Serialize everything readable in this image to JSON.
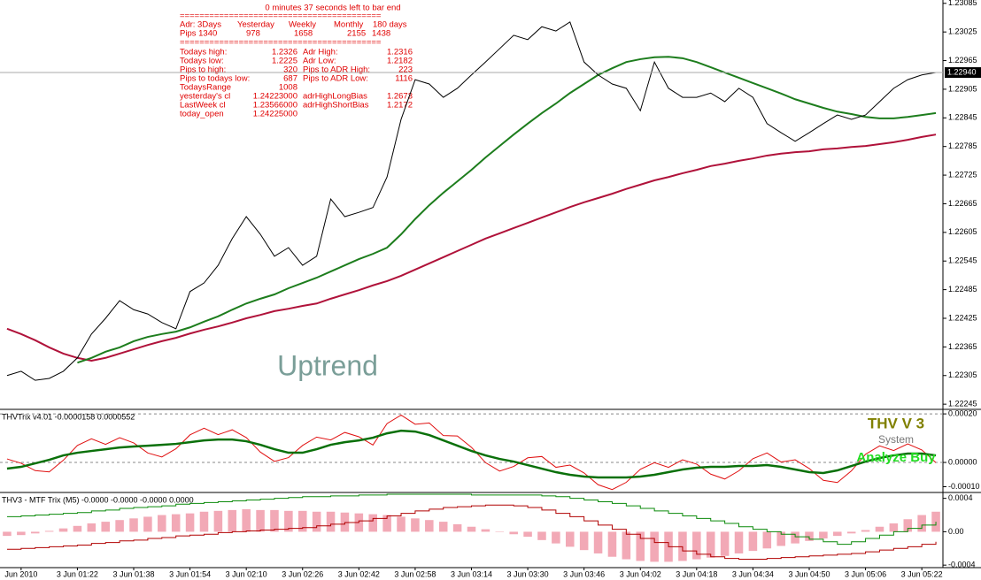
{
  "info": {
    "timer": "0 minutes 37 seconds left to bar end",
    "separator": "=========================================",
    "adr_header": [
      "Adr: 3Days",
      "Yesterday",
      "Weekly",
      "Monthly",
      "180 days"
    ],
    "adr_pips": [
      "Pips  1340",
      "978",
      "1658",
      "2155",
      "1438"
    ],
    "stats": [
      [
        "Todays high:",
        "1.2326",
        "Adr High:",
        "1.2316"
      ],
      [
        "Todays low:",
        "1.2225",
        "Adr Low:",
        "1.2182"
      ],
      [
        " Pips to high:",
        "320",
        "Pips to ADR High:",
        "223"
      ],
      [
        "Pips to todays low:",
        "687",
        "Pips to ADR Low:",
        "1116"
      ],
      [
        "TodaysRange",
        "1008"
      ],
      [
        "yesterday's cl",
        "1.24223000",
        "adrHighLongBias",
        "1.2673"
      ],
      [
        " LastWeek cl",
        "1.23566000",
        "adrHighShortBias",
        "1.2172"
      ],
      [
        "  today_open",
        "1.24225000"
      ]
    ]
  },
  "chart_data": [
    {
      "type": "line",
      "annotation": "Uptrend",
      "ylim": [
        1.22236,
        1.23092
      ],
      "yticks": [
        1.23085,
        1.23025,
        1.22965,
        1.22905,
        1.22845,
        1.22785,
        1.22725,
        1.22665,
        1.22605,
        1.22545,
        1.22485,
        1.22425,
        1.22365,
        1.22305,
        1.22245
      ],
      "last_price": {
        "value": 1.2294,
        "label": "1.22940"
      },
      "series": [
        {
          "color": "#b0123a",
          "width": 2,
          "values": [
            1.22403,
            1.22392,
            1.22379,
            1.22364,
            1.22351,
            1.22342,
            1.22336,
            1.22342,
            1.22351,
            1.2236,
            1.22369,
            1.22377,
            1.22384,
            1.22393,
            1.22401,
            1.22408,
            1.22416,
            1.22425,
            1.22432,
            1.2244,
            1.22445,
            1.22451,
            1.22456,
            1.22466,
            1.22475,
            1.22484,
            1.22494,
            1.22503,
            1.22514,
            1.22527,
            1.2254,
            1.22553,
            1.22566,
            1.22579,
            1.22592,
            1.22603,
            1.22614,
            1.22625,
            1.22636,
            1.22647,
            1.22658,
            1.22668,
            1.22677,
            1.22686,
            1.22696,
            1.22705,
            1.22714,
            1.22721,
            1.22729,
            1.22736,
            1.22744,
            1.22749,
            1.22755,
            1.2276,
            1.22766,
            1.2277,
            1.22773,
            1.22775,
            1.22779,
            1.22781,
            1.22784,
            1.22786,
            1.2279,
            1.22794,
            1.22799,
            1.22805,
            1.2281
          ]
        },
        {
          "color": "#1d7d1d",
          "width": 2,
          "values": [
            null,
            null,
            null,
            null,
            null,
            1.22332,
            1.22342,
            1.22355,
            1.22364,
            1.22377,
            1.22386,
            1.22392,
            1.22397,
            1.22406,
            1.22418,
            1.22429,
            1.22443,
            1.22456,
            1.22466,
            1.22475,
            1.22488,
            1.22499,
            1.2251,
            1.22523,
            1.22536,
            1.22549,
            1.2256,
            1.22573,
            1.22601,
            1.22633,
            1.22662,
            1.22688,
            1.22712,
            1.22736,
            1.22762,
            1.22786,
            1.2281,
            1.22833,
            1.22855,
            1.22875,
            1.22897,
            1.22916,
            1.22935,
            1.22949,
            1.22962,
            1.22968,
            1.22972,
            1.22973,
            1.2297,
            1.22962,
            1.22951,
            1.2294,
            1.22929,
            1.22918,
            1.22907,
            1.22896,
            1.22884,
            1.22875,
            1.22866,
            1.22858,
            1.22853,
            1.22847,
            1.22844,
            1.22844,
            1.22847,
            1.22851,
            1.22855
          ]
        },
        {
          "color": "#000000",
          "width": 1,
          "values": [
            1.22305,
            1.22314,
            1.22295,
            1.22299,
            1.22314,
            1.22342,
            1.22392,
            1.22425,
            1.22462,
            1.22443,
            1.22434,
            1.22416,
            1.22403,
            1.22481,
            1.22499,
            1.22536,
            1.22592,
            1.22638,
            1.22601,
            1.22555,
            1.22573,
            1.22536,
            1.22555,
            1.22675,
            1.22638,
            1.22647,
            1.22657,
            1.22721,
            1.22842,
            1.22925,
            1.22916,
            1.22888,
            1.22907,
            1.22935,
            1.22962,
            1.2299,
            1.23018,
            1.23009,
            1.23036,
            1.23027,
            1.23046,
            1.22962,
            1.22935,
            1.22916,
            1.22907,
            1.2286,
            1.22962,
            1.22907,
            1.22888,
            1.22888,
            1.22897,
            1.22879,
            1.22907,
            1.22888,
            1.22833,
            1.22814,
            1.22796,
            1.22814,
            1.22833,
            1.22851,
            1.22842,
            1.22851,
            1.22879,
            1.22907,
            1.22925,
            1.22935,
            1.2294
          ]
        }
      ]
    },
    {
      "type": "line",
      "title": "THVTrix v4.01 -0.0000158 0.0000552",
      "annotations": [
        "THV V 3",
        "System",
        "Analyze Buy"
      ],
      "ylim": [
        -0.00012,
        0.000215
      ],
      "yticks": [
        {
          "value": 0.0002,
          "label": "0.00020"
        },
        {
          "value": 0,
          "label": "0.00000"
        },
        {
          "value": -0.0001,
          "label": "-0.00010"
        }
      ],
      "levels": [
        0.0002,
        0
      ],
      "series": [
        {
          "color": "#e01010",
          "width": 1,
          "values": [
            1.45e-05,
            -3.2e-06,
            -3.36e-05,
            -3.91e-05,
            9.1e-06,
            7e-05,
            9.73e-05,
            7.45e-05,
            0.0001018,
            8.05e-05,
            3.91e-05,
            2.27e-05,
            5.64e-05,
            0.0001136,
            0.0001409,
            0.0001145,
            0.0001345,
            0.0001023,
            4.27e-05,
            4.5e-06,
            2e-05,
            7e-05,
            0.0001045,
            9.27e-05,
            0.0001236,
            0.0001059,
            7.18e-05,
            0.00016,
            0.000195,
            0.0001573,
            0.0001627,
            0.0001109,
            0.0001091,
            6.23e-05,
            -9e-07,
            -3.55e-05,
            -1.64e-05,
            1.91e-05,
            2.45e-05,
            -2e-05,
            -1.09e-05,
            -4.32e-05,
            -9.18e-05,
            -0.0001118,
            -8.18e-05,
            -2.82e-05,
            -9e-07,
            -2e-05,
            1.09e-05,
            -6.8e-06,
            -4.82e-05,
            -6.82e-05,
            -3.45e-05,
            1.55e-05,
            3.91e-05,
            1.8e-06,
            1.09e-05,
            -2.5e-05,
            -7.36e-05,
            -8.27e-05,
            -3.45e-05,
            3.36e-05,
            6.82e-05,
            4.91e-05,
            7.64e-05,
            5.14e-05,
            -9e-07
          ]
        },
        {
          "color": "#0a700a",
          "width": 2.5,
          "values": [
            -2.55e-05,
            -1.82e-05,
            -3.6e-06,
            1.09e-05,
            2.91e-05,
            4e-05,
            4.73e-05,
            5.45e-05,
            6.18e-05,
            6.55e-05,
            6.91e-05,
            7.27e-05,
            7.64e-05,
            8.36e-05,
            9.09e-05,
            9.45e-05,
            9.45e-05,
            8.73e-05,
            7.27e-05,
            5.45e-05,
            4e-05,
            4e-05,
            5.45e-05,
            7.27e-05,
            8.36e-05,
            9.09e-05,
            0.0001018,
            0.00012,
            0.0001309,
            0.0001273,
            0.0001127,
            9.09e-05,
            6.91e-05,
            4.73e-05,
            2.91e-05,
            1.45e-05,
            3.6e-06,
            -1.09e-05,
            -2.55e-05,
            -4e-05,
            -5.09e-05,
            -5.82e-05,
            -6.18e-05,
            -6.18e-05,
            -6.18e-05,
            -5.82e-05,
            -5.09e-05,
            -4e-05,
            -2.91e-05,
            -2.18e-05,
            -1.82e-05,
            -1.82e-05,
            -1.45e-05,
            -1.45e-05,
            -1.09e-05,
            -1.82e-05,
            -2.91e-05,
            -4e-05,
            -4.36e-05,
            -3.27e-05,
            -1.45e-05,
            3.6e-06,
            1.82e-05,
            2.91e-05,
            3.64e-05,
            3.64e-05,
            2.91e-05
          ]
        }
      ]
    },
    {
      "type": "combo",
      "title": "THV3 - MTF Trix (M5) -0.0000 -0.0000 -0.0000 0.0000",
      "ylim": [
        -0.00043,
        0.00046
      ],
      "yticks": [
        0.0004,
        {
          "value": 0,
          "label": "0.00"
        },
        -0.0004
      ],
      "categories": [
        null,
        "Jun 2010",
        null,
        null,
        null,
        "3 Jun 01:22",
        null,
        null,
        null,
        "3 Jun 01:38",
        null,
        null,
        null,
        "3 Jun 01:54",
        null,
        null,
        null,
        "3 Jun 02:10",
        null,
        null,
        null,
        "3 Jun 02:26",
        null,
        null,
        null,
        "3 Jun 02:42",
        null,
        null,
        null,
        "3 Jun 02:58",
        null,
        null,
        null,
        "3 Jun 03:14",
        null,
        null,
        null,
        "3 Jun 03:30",
        null,
        null,
        null,
        "3 Jun 03:46",
        null,
        null,
        null,
        "3 Jun 04:02",
        null,
        null,
        null,
        "3 Jun 04:18",
        null,
        null,
        null,
        "3 Jun 04:34",
        null,
        null,
        null,
        "3 Jun 04:50",
        null,
        null,
        null,
        "3 Jun 05:06",
        null,
        null,
        null,
        "3 Jun 05:22",
        null
      ],
      "series": [
        {
          "type": "bar",
          "color": "#f2a9b6",
          "values": [
            -5e-05,
            -4e-05,
            -2e-05,
            1e-05,
            4e-05,
            7e-05,
            0.0001,
            0.00012,
            0.00014,
            0.00016,
            0.00018,
            0.0002,
            0.00021,
            0.00022,
            0.00024,
            0.00025,
            0.00026,
            0.00027,
            0.00026,
            0.00026,
            0.00025,
            0.00025,
            0.00024,
            0.00024,
            0.00023,
            0.00022,
            0.00021,
            0.0002,
            0.00018,
            0.00016,
            0.00014,
            0.00012,
            9e-05,
            6e-05,
            3e-05,
            0,
            -3e-05,
            -6e-05,
            -0.0001,
            -0.00014,
            -0.00018,
            -0.00022,
            -0.00026,
            -0.0003,
            -0.00033,
            -0.00035,
            -0.00036,
            -0.00036,
            -0.00035,
            -0.00033,
            -0.00031,
            -0.00029,
            -0.00026,
            -0.00023,
            -0.0002,
            -0.00017,
            -0.00014,
            -0.00011,
            -8e-05,
            -5e-05,
            -2e-05,
            2e-05,
            6e-05,
            0.0001,
            0.00015,
            0.0002,
            0.00024
          ]
        },
        {
          "type": "line",
          "step": true,
          "color": "#0a8a0a",
          "width": 1,
          "values": [
            0.00018,
            0.00019,
            0.0002,
            0.00021,
            0.00022,
            0.00023,
            0.00025,
            0.00026,
            0.00028,
            0.00029,
            0.0003,
            0.00031,
            0.00033,
            0.00034,
            0.00035,
            0.00036,
            0.00037,
            0.00038,
            0.00039,
            0.0004,
            0.00041,
            0.00042,
            0.00042,
            0.00043,
            0.00043,
            0.00044,
            0.00044,
            0.00045,
            0.00045,
            0.00045,
            0.00045,
            0.00045,
            0.00045,
            0.00044,
            0.00044,
            0.00044,
            0.00044,
            0.00044,
            0.00043,
            0.00042,
            0.0004,
            0.00038,
            0.00036,
            0.00034,
            0.00031,
            0.00028,
            0.00025,
            0.00022,
            0.00019,
            0.00016,
            0.00013,
            0.0001,
            6e-05,
            3e-05,
            0,
            -3e-05,
            -6e-05,
            -9e-05,
            -0.00012,
            -0.00015,
            -0.00012,
            -8e-05,
            -4e-05,
            0,
            4e-05,
            8e-05,
            0.00012
          ]
        },
        {
          "type": "line",
          "step": true,
          "color": "#b00000",
          "width": 1,
          "values": [
            -0.00021,
            -0.0002,
            -0.00019,
            -0.00018,
            -0.00017,
            -0.00016,
            -0.00014,
            -0.00013,
            -0.00011,
            -0.0001,
            -8e-05,
            -7e-05,
            -5e-05,
            -4e-05,
            -3e-05,
            -1e-05,
            0,
            1e-05,
            2e-05,
            3e-05,
            4e-05,
            5e-05,
            7e-05,
            9e-05,
            0.00011,
            0.00013,
            0.00016,
            0.00019,
            0.00022,
            0.00025,
            0.00027,
            0.00029,
            0.0003,
            0.00031,
            0.00032,
            0.00032,
            0.00031,
            0.00029,
            0.00026,
            0.00022,
            0.00018,
            0.00013,
            8e-05,
            3e-05,
            -3e-05,
            -8e-05,
            -0.00013,
            -0.00018,
            -0.00023,
            -0.00027,
            -0.0003,
            -0.00032,
            -0.00033,
            -0.00033,
            -0.00032,
            -0.00031,
            -0.0003,
            -0.00029,
            -0.00028,
            -0.00027,
            -0.00026,
            -0.00024,
            -0.00022,
            -0.0002,
            -0.00018,
            -0.00015,
            -0.00012
          ]
        }
      ]
    }
  ]
}
